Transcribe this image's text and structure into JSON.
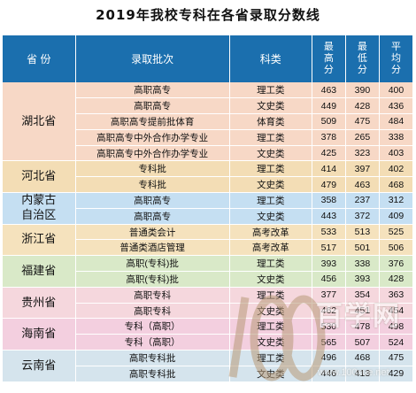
{
  "title": "2019年我校专科在各省录取分数线",
  "header": {
    "province": "省 份",
    "batch": "录取批次",
    "category": "科类",
    "max": [
      "最",
      "高",
      "分"
    ],
    "min": [
      "最",
      "低",
      "分"
    ],
    "avg": [
      "平",
      "均",
      "分"
    ]
  },
  "groups": [
    {
      "province": "湖北省",
      "rows": [
        {
          "batch": "高职高专",
          "category": "理工类",
          "max": "463",
          "min": "390",
          "avg": "400"
        },
        {
          "batch": "高职高专",
          "category": "文史类",
          "max": "449",
          "min": "428",
          "avg": "436"
        },
        {
          "batch": "高职高专提前批体育",
          "category": "体育类",
          "max": "509",
          "min": "475",
          "avg": "484"
        },
        {
          "batch": "高职高专中外合作办学专业",
          "category": "理工类",
          "max": "378",
          "min": "265",
          "avg": "338"
        },
        {
          "batch": "高职高专中外合作办学专业",
          "category": "文史类",
          "max": "425",
          "min": "323",
          "avg": "403"
        }
      ]
    },
    {
      "province": "河北省",
      "rows": [
        {
          "batch": "专科批",
          "category": "理工类",
          "max": "414",
          "min": "397",
          "avg": "402"
        },
        {
          "batch": "专科批",
          "category": "文史类",
          "max": "479",
          "min": "463",
          "avg": "468"
        }
      ]
    },
    {
      "province": "内蒙古自治区",
      "province_lines": [
        "内蒙古",
        "自治区"
      ],
      "rows": [
        {
          "batch": "高职高专",
          "category": "理工类",
          "max": "358",
          "min": "237",
          "avg": "312"
        },
        {
          "batch": "高职高专",
          "category": "文史类",
          "max": "443",
          "min": "372",
          "avg": "409"
        }
      ]
    },
    {
      "province": "浙江省",
      "rows": [
        {
          "batch": "普通类会计",
          "category": "高考改革",
          "max": "533",
          "min": "513",
          "avg": "525"
        },
        {
          "batch": "普通类酒店管理",
          "category": "高考改革",
          "max": "517",
          "min": "501",
          "avg": "506"
        }
      ]
    },
    {
      "province": "福建省",
      "rows": [
        {
          "batch": "高职(专科)批",
          "category": "理工类",
          "max": "393",
          "min": "338",
          "avg": "376"
        },
        {
          "batch": "高职(专科)批",
          "category": "文史类",
          "max": "456",
          "min": "393",
          "avg": "428"
        }
      ]
    },
    {
      "province": "贵州省",
      "rows": [
        {
          "batch": "高职专科",
          "category": "理工类",
          "max": "377",
          "min": "354",
          "avg": "363"
        },
        {
          "batch": "高职专科",
          "category": "文史类",
          "max": "462",
          "min": "451",
          "avg": "454"
        }
      ]
    },
    {
      "province": "海南省",
      "rows": [
        {
          "batch": "专科（高职）",
          "category": "理工类",
          "max": "530",
          "min": "478",
          "avg": "498"
        },
        {
          "batch": "专科（高职）",
          "category": "文史类",
          "max": "565",
          "min": "507",
          "avg": "524"
        }
      ]
    },
    {
      "province": "云南省",
      "rows": [
        {
          "batch": "高职专科批",
          "category": "理工类",
          "max": "496",
          "min": "468",
          "avg": "475"
        },
        {
          "batch": "高职专科批",
          "category": "文史类",
          "max": "446",
          "min": "413",
          "avg": "429"
        }
      ]
    }
  ],
  "watermark": {
    "brand": "百学网",
    "url": "www.100xue.net"
  }
}
